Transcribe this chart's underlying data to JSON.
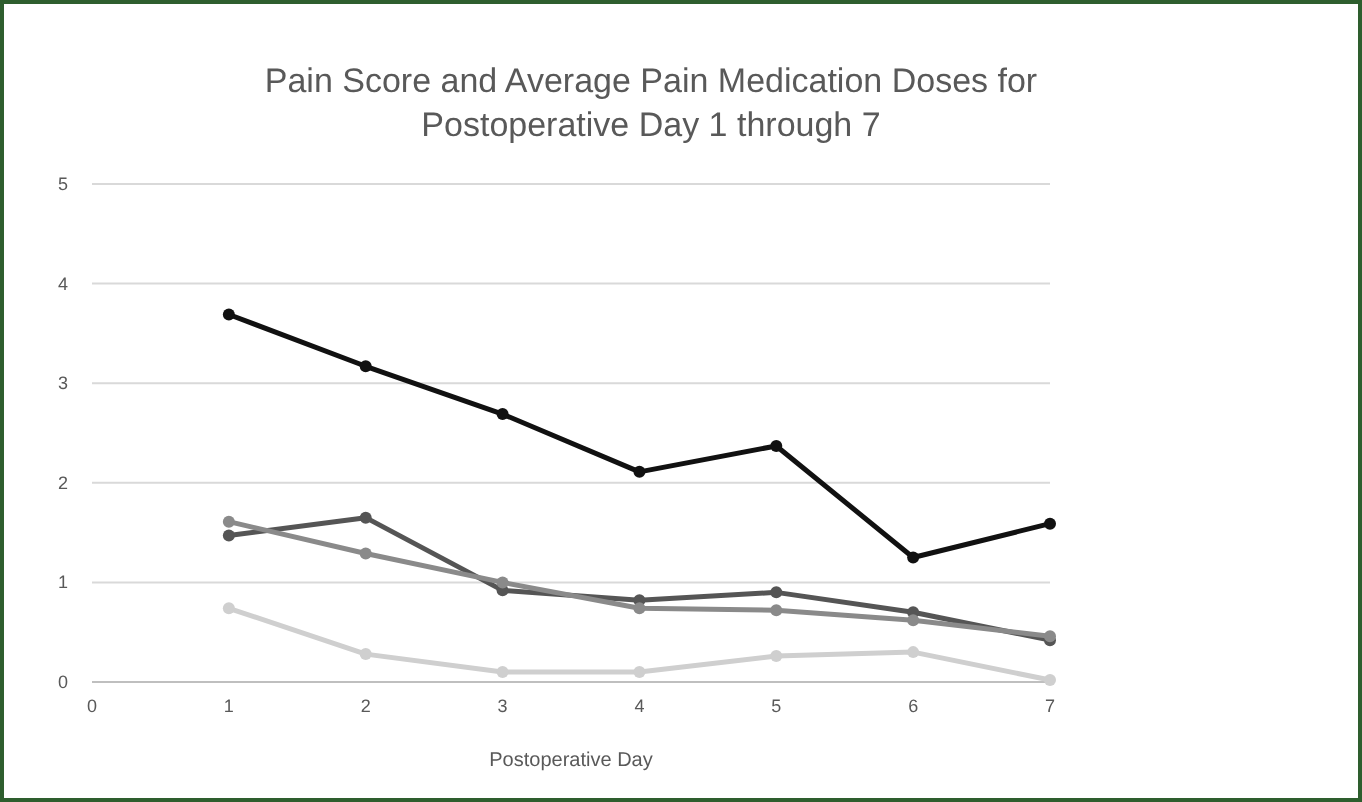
{
  "chart_data": {
    "type": "line",
    "title": "Pain Score and Average Pain Medication Doses for Postoperative Day  1 through 7",
    "xlabel": "Postoperative Day",
    "x": [
      1,
      2,
      3,
      4,
      5,
      6,
      7
    ],
    "series": [
      {
        "color": "#111111",
        "values": [
          3.69,
          3.17,
          2.69,
          2.11,
          2.37,
          1.25,
          1.59
        ]
      },
      {
        "color": "#555555",
        "values": [
          1.47,
          1.65,
          0.92,
          0.82,
          0.9,
          0.7,
          0.42
        ]
      },
      {
        "color": "#8a8a8a",
        "values": [
          1.61,
          1.29,
          1.0,
          0.74,
          0.72,
          0.62,
          0.46
        ]
      },
      {
        "color": "#cfcfcf",
        "values": [
          0.74,
          0.28,
          0.1,
          0.1,
          0.26,
          0.3,
          0.02
        ]
      }
    ],
    "xlim": [
      0,
      7
    ],
    "xticks": [
      0,
      1,
      2,
      3,
      4,
      5,
      6,
      7
    ],
    "ylim": [
      0,
      5
    ],
    "yticks": [
      0,
      1,
      2,
      3,
      4,
      5
    ],
    "grid": "y",
    "marker": "circle",
    "line_style": "solid"
  }
}
